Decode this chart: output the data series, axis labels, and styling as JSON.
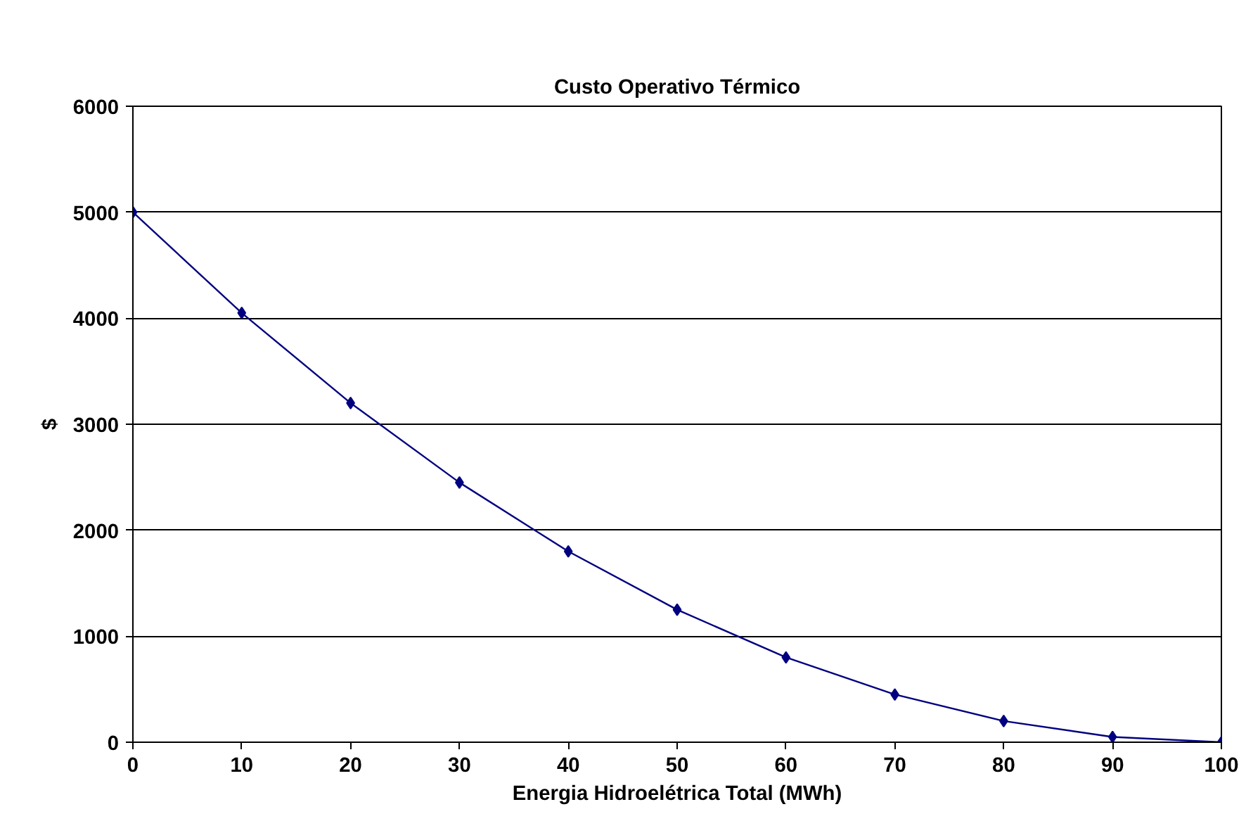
{
  "chart_data": {
    "type": "line",
    "title": "Custo Operativo Térmico",
    "xlabel": "Energia Hidroelétrica Total (MWh)",
    "ylabel": "$",
    "x": [
      0,
      10,
      20,
      30,
      40,
      50,
      60,
      70,
      80,
      90,
      100
    ],
    "series": [
      {
        "color": "#000080",
        "values": [
          5000,
          4050,
          3200,
          2450,
          1800,
          1250,
          800,
          450,
          200,
          50,
          0
        ]
      }
    ],
    "xlim": [
      0,
      100
    ],
    "xticks": [
      0,
      10,
      20,
      30,
      40,
      50,
      60,
      70,
      80,
      90,
      100
    ],
    "ylim": [
      0,
      6000
    ],
    "yticks": [
      0,
      1000,
      2000,
      3000,
      4000,
      5000,
      6000
    ],
    "grid": "y",
    "marker": "diamond",
    "line_style": "solid"
  }
}
